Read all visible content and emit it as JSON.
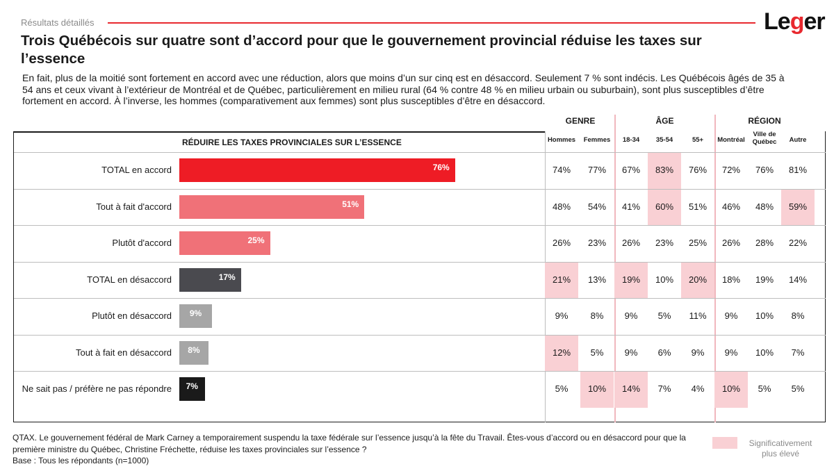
{
  "header": {
    "section_label": "Résultats détaillés",
    "logo_prefix": "Le",
    "logo_g": "g",
    "logo_suffix": "er",
    "title": "Trois Québécois sur quatre sont d’accord pour que le gouvernement provincial réduise les taxes sur l’essence",
    "subtitle": "En fait, plus de la moitié sont fortement en accord avec une réduction, alors que moins d’un sur cinq est en désaccord. Seulement 7 % sont indécis. Les Québécois âgés de 35 à 54 ans et ceux vivant à l’extérieur de Montréal et de Québec, particulièrement en milieu rural (64 % contre 48 % en milieu urbain ou suburbain), sont plus susceptibles d’être fortement en accord. À l’inverse, les hommes (comparativement aux femmes) sont plus susceptibles d’être en désaccord."
  },
  "table": {
    "title": "RÉDUIRE LES TAXES PROVINCIALES SUR L’ESSENCE",
    "groups": [
      "GENRE",
      "ÂGE",
      "RÉGION"
    ],
    "columns": [
      "Hommes",
      "Femmes",
      "18-34",
      "35-54",
      "55+",
      "Montréal",
      "Ville de Québec",
      "Autre"
    ]
  },
  "colors": {
    "accent_red": "#e8292f",
    "bar_total_accord": "#ee1c25",
    "bar_accord": "#f07178",
    "bar_total_desaccord": "#4a4a4f",
    "bar_desaccord": "#a6a6a6",
    "bar_nsp": "#1a1a1a",
    "highlight": "#f9d0d4"
  },
  "chart_data": {
    "type": "bar",
    "categories": [
      "TOTAL en accord",
      "Tout à fait d'accord",
      "Plutôt d'accord",
      "TOTAL en désaccord",
      "Plutôt en désaccord",
      "Tout à fait en désaccord",
      "Ne sait pas / préfère ne pas répondre"
    ],
    "values": [
      76,
      51,
      25,
      17,
      9,
      8,
      7
    ],
    "value_labels": [
      "76%",
      "51%",
      "25%",
      "17%",
      "9%",
      "8%",
      "7%"
    ],
    "unit": "%",
    "xlim": [
      0,
      100
    ],
    "breakdown": [
      [
        "74%",
        "77%",
        "67%",
        "83%",
        "76%",
        "72%",
        "76%",
        "81%"
      ],
      [
        "48%",
        "54%",
        "41%",
        "60%",
        "51%",
        "46%",
        "48%",
        "59%"
      ],
      [
        "26%",
        "23%",
        "26%",
        "23%",
        "25%",
        "26%",
        "28%",
        "22%"
      ],
      [
        "21%",
        "13%",
        "19%",
        "10%",
        "20%",
        "18%",
        "19%",
        "14%"
      ],
      [
        "9%",
        "8%",
        "9%",
        "5%",
        "11%",
        "9%",
        "10%",
        "8%"
      ],
      [
        "12%",
        "5%",
        "9%",
        "6%",
        "9%",
        "9%",
        "10%",
        "7%"
      ],
      [
        "5%",
        "10%",
        "14%",
        "7%",
        "4%",
        "10%",
        "5%",
        "5%"
      ]
    ],
    "significant": [
      [
        false,
        false,
        false,
        true,
        false,
        false,
        false,
        false
      ],
      [
        false,
        false,
        false,
        true,
        false,
        false,
        false,
        true
      ],
      [
        false,
        false,
        false,
        false,
        false,
        false,
        false,
        false
      ],
      [
        true,
        false,
        true,
        false,
        true,
        false,
        false,
        false
      ],
      [
        false,
        false,
        false,
        false,
        false,
        false,
        false,
        false
      ],
      [
        true,
        false,
        false,
        false,
        false,
        false,
        false,
        false
      ],
      [
        false,
        true,
        true,
        false,
        false,
        true,
        false,
        false
      ]
    ]
  },
  "footer": {
    "question": "QTAX. Le gouvernement fédéral de Mark Carney a temporairement suspendu la taxe fédérale sur l’essence jusqu’à la fête du Travail. Êtes-vous d’accord ou en désaccord pour que la première ministre du Québec, Christine Fréchette, réduise les taxes provinciales sur l’essence ?",
    "base": "Base : Tous les répondants (n=1000)",
    "legend": "Significativement plus élevé"
  }
}
